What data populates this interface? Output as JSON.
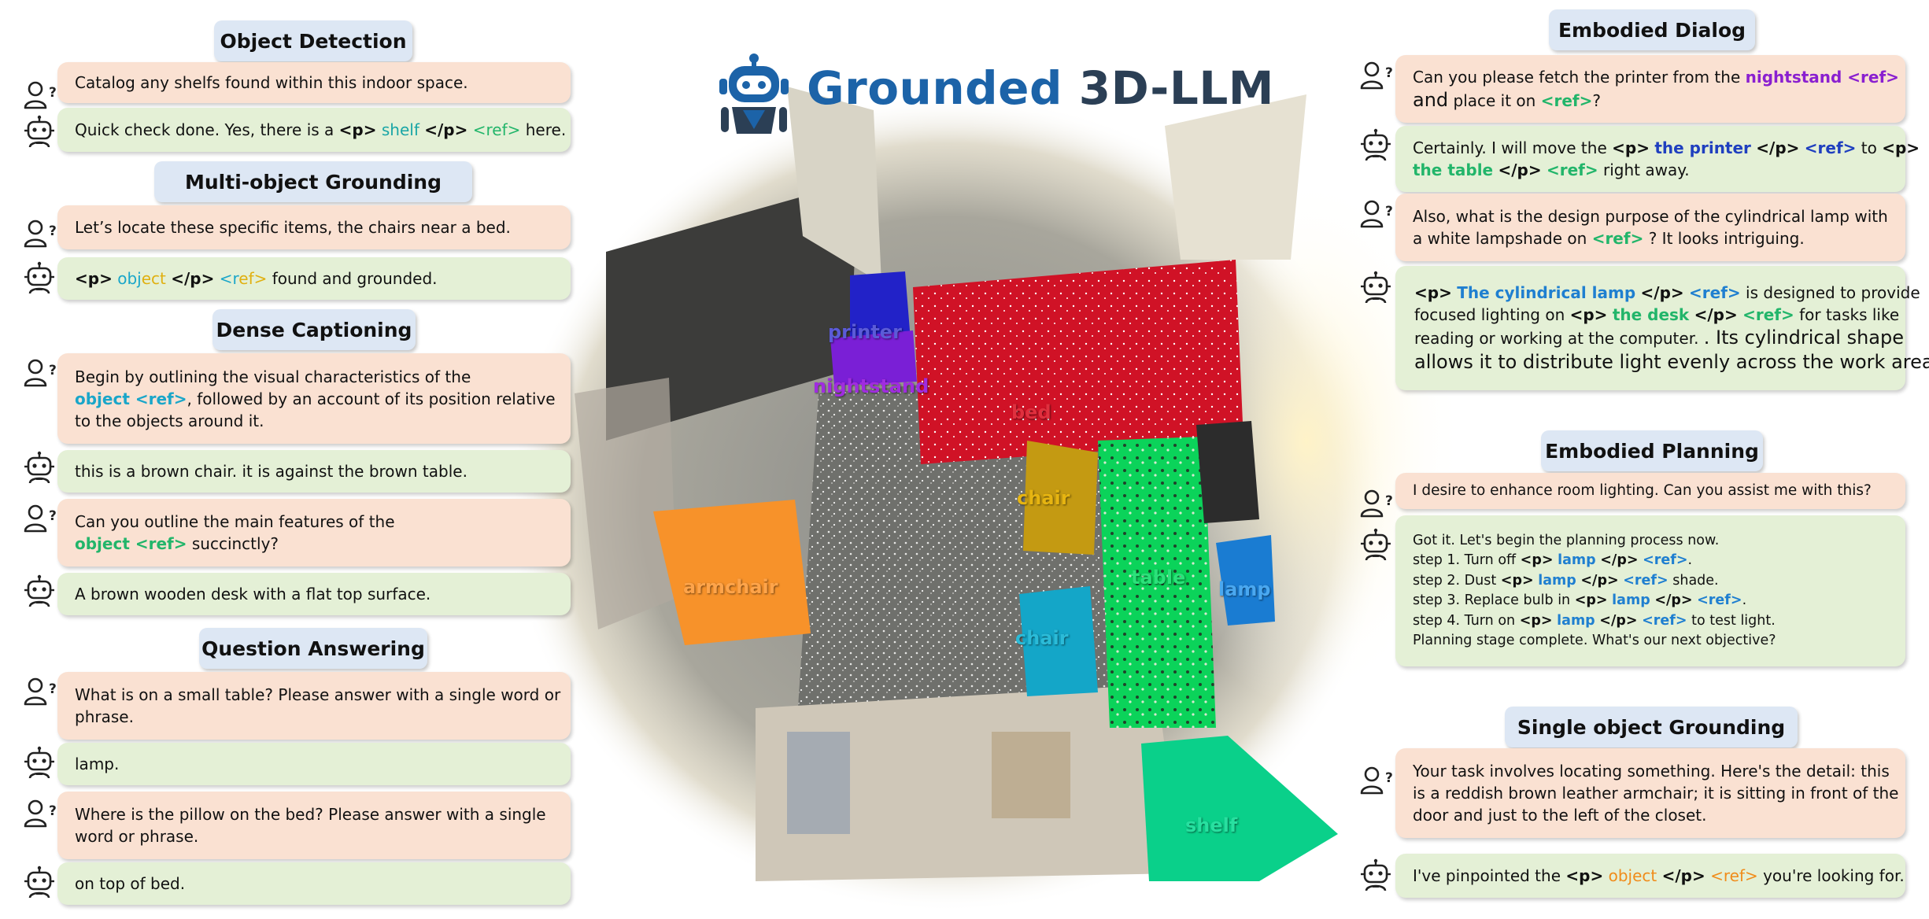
{
  "brand": {
    "word1": "Grounded",
    "word2": "3D-LLM"
  },
  "colors": {
    "user_bubble": "#fae1d2",
    "bot_bubble": "#e4f0d6",
    "title_pill": "#dde7f4",
    "brand_blue": "#1c63a8",
    "ref_green": "#22b56a",
    "nightstand_purple": "#8a1fd0",
    "object_cyan": "#1aa6c9",
    "lamp_blue": "#1f7fd0",
    "object_orange": "#f08c1a"
  },
  "sections": {
    "object_detection": "Object Detection",
    "multi_object_grounding": "Multi-object Grounding",
    "dense_captioning": "Dense Captioning",
    "question_answering": "Question Answering",
    "embodied_dialog": "Embodied Dialog",
    "embodied_planning": "Embodied Planning",
    "single_object_grounding": "Single object Grounding"
  },
  "tokens": {
    "p_open": "<p>",
    "p_close": "</p>",
    "ref": "<ref>"
  },
  "od": {
    "q": "Catalog any shelfs found within this indoor space.",
    "a_pre": "Quick check done. Yes, there is a ",
    "a_obj": "shelf",
    "a_post": " here."
  },
  "mog": {
    "q": "Let’s locate these specific items, the chairs near a bed.",
    "a_obj1": "obj",
    "a_obj2": "ect",
    "a_ref1": "<r",
    "a_ref2": "ef>",
    "a_post": " found and grounded."
  },
  "dc": {
    "q1_l1": "Begin by outlining the visual characteristics of the",
    "q1_obj": "object <ref>",
    "q1_l2": ", followed by an account of its position relative",
    "q1_l3": "to the objects around it.",
    "a1": "this is a brown chair. it is against the brown table.",
    "q2_l1": "Can you outline the main features of the",
    "q2_obj": "object <ref>",
    "q2_l2": " succinctly?",
    "a2": "A brown wooden desk with a flat top surface."
  },
  "qa": {
    "q1_l1": "What is on a small table? Please answer with a single word or",
    "q1_l2": "phrase.",
    "a1": "lamp.",
    "q2_l1": "Where is the pillow on the bed? Please answer with a single",
    "q2_l2": "word or phrase.",
    "a2": "on top of bed."
  },
  "ed": {
    "q1_l1": "Can you please fetch the printer from the ",
    "q1_obj": "nightstand <ref>",
    "q1_l2a": "and",
    "q1_l2b": " place it on ",
    "q1_l2c": "?",
    "a1_l1a": "Certainly. I will move the ",
    "a1_obj1": "the printer",
    "a1_l1b": " to ",
    "a1_obj2": "the table",
    "a1_l2b": " right away.",
    "q2_l1": "Also, what is the design purpose of the cylindrical lamp with",
    "q2_l2a": "a white lampshade on ",
    "q2_l2b": " ? It looks intriguing.",
    "a2_obj1": "The cylindrical lamp",
    "a2_l1b": "  is designed to provide",
    "a2_l2a": "focused lighting on ",
    "a2_obj2": "the desk",
    "a2_l2b": "  for tasks like",
    "a2_l3a": "reading or working at the computer. ",
    "a2_l3b": ". Its cylindrical shape",
    "a2_l4": "allows it to distribute light evenly across the work area."
  },
  "ep": {
    "q": "I desire to enhance room lighting. Can you assist me with this?",
    "intro": "Got it. Let's begin the planning process now.",
    "lamp": "lamp",
    "s1a": "step 1. Turn off ",
    "s1b": ".",
    "s2a": "step 2. Dust ",
    "s2b": " shade.",
    "s3a": "step 3. Replace bulb in ",
    "s3b": ".",
    "s4a": "step 4. Turn on ",
    "s4b": " to test light.",
    "outro": "Planning stage complete. What's our next objective?"
  },
  "sog": {
    "q_l1": "Your task involves locating something. Here's the detail: this",
    "q_l2": "is a reddish brown leather armchair; it is sitting in front of the",
    "q_l3": "door and just to the left of the closet.",
    "a_pre": "I've pinpointed the ",
    "a_obj": "object",
    "a_post": " you're looking for."
  },
  "scene_labels": {
    "printer": "printer",
    "nightstand": "nightstand",
    "bed": "bed",
    "chair1": "chair",
    "chair2": "chair",
    "armchair": "armchair",
    "table": "table",
    "lamp": "lamp",
    "shelf": "shelf"
  }
}
